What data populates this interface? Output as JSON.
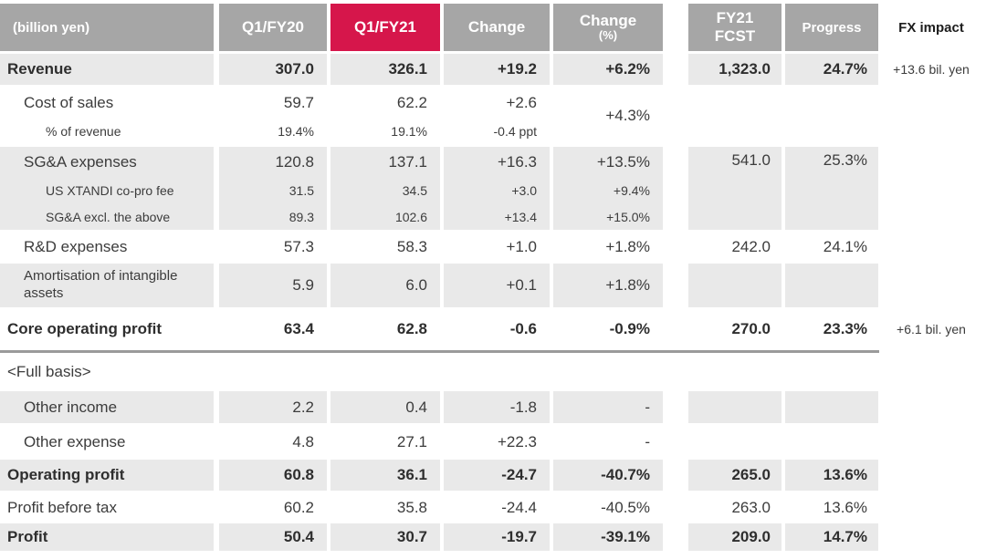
{
  "colors": {
    "accent_red": "#d6164b",
    "header_gray": "#a6a6a6",
    "band_gray": "#e9e9e9",
    "divider_gray": "#9a9a9a",
    "text": "#3c3c3c"
  },
  "header": {
    "unit": "(billion yen)",
    "q1fy20": "Q1/FY20",
    "q1fy21": "Q1/FY21",
    "change": "Change",
    "change_pct_line1": "Change",
    "change_pct_line2": "(%)",
    "fcst": "FY21\nFCST",
    "progress": "Progress",
    "fx": "FX impact"
  },
  "rows": {
    "revenue": {
      "label": "Revenue",
      "q1fy20": "307.0",
      "q1fy21": "326.1",
      "change": "+19.2",
      "change_pct": "+6.2%",
      "fcst": "1,323.0",
      "progress": "24.7%",
      "fx": "+13.6 bil. yen"
    },
    "cost_of_sales": {
      "label": "Cost of sales",
      "q1fy20": "59.7",
      "q1fy21": "62.2",
      "change": "+2.6",
      "change_pct": "+4.3%"
    },
    "pct_of_revenue": {
      "label": "% of revenue",
      "q1fy20": "19.4%",
      "q1fy21": "19.1%",
      "change": "-0.4 ppt"
    },
    "sga": {
      "label": "SG&A expenses",
      "q1fy20": "120.8",
      "q1fy21": "137.1",
      "change": "+16.3",
      "change_pct": "+13.5%",
      "fcst": "541.0",
      "progress": "25.3%"
    },
    "xtandi": {
      "label": "US XTANDI co-pro fee",
      "q1fy20": "31.5",
      "q1fy21": "34.5",
      "change": "+3.0",
      "change_pct": "+9.4%"
    },
    "sga_excl": {
      "label": "SG&A excl. the above",
      "q1fy20": "89.3",
      "q1fy21": "102.6",
      "change": "+13.4",
      "change_pct": "+15.0%"
    },
    "rd": {
      "label": "R&D expenses",
      "q1fy20": "57.3",
      "q1fy21": "58.3",
      "change": "+1.0",
      "change_pct": "+1.8%",
      "fcst": "242.0",
      "progress": "24.1%"
    },
    "amortisation": {
      "label": "Amortisation of intangible assets",
      "q1fy20": "5.9",
      "q1fy21": "6.0",
      "change": "+0.1",
      "change_pct": "+1.8%"
    },
    "core_op": {
      "label": "Core operating profit",
      "q1fy20": "63.4",
      "q1fy21": "62.8",
      "change": "-0.6",
      "change_pct": "-0.9%",
      "fcst": "270.0",
      "progress": "23.3%",
      "fx": "+6.1 bil. yen"
    },
    "full_basis": {
      "label": "<Full basis>"
    },
    "other_income": {
      "label": "Other income",
      "q1fy20": "2.2",
      "q1fy21": "0.4",
      "change": "-1.8",
      "change_pct": "-"
    },
    "other_expense": {
      "label": "Other expense",
      "q1fy20": "4.8",
      "q1fy21": "27.1",
      "change": "+22.3",
      "change_pct": "-"
    },
    "op_profit": {
      "label": "Operating profit",
      "q1fy20": "60.8",
      "q1fy21": "36.1",
      "change": "-24.7",
      "change_pct": "-40.7%",
      "fcst": "265.0",
      "progress": "13.6%"
    },
    "profit_before_tax": {
      "label": "Profit before tax",
      "q1fy20": "60.2",
      "q1fy21": "35.8",
      "change": "-24.4",
      "change_pct": "-40.5%",
      "fcst": "263.0",
      "progress": "13.6%"
    },
    "profit": {
      "label": "Profit",
      "q1fy20": "50.4",
      "q1fy21": "30.7",
      "change": "-19.7",
      "change_pct": "-39.1%",
      "fcst": "209.0",
      "progress": "14.7%"
    }
  }
}
